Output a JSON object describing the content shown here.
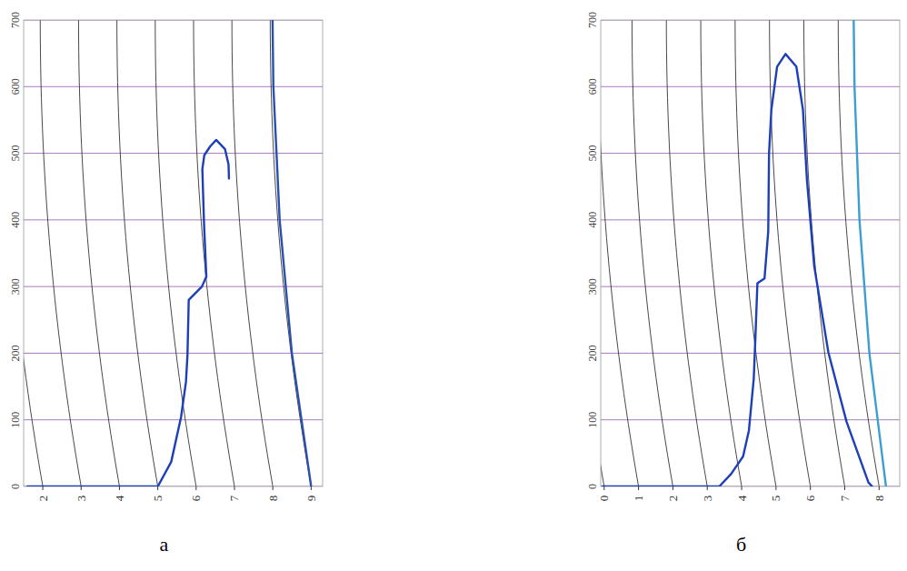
{
  "chart_data": [
    {
      "type": "line",
      "title": "а",
      "xlim": [
        1.5,
        9.3
      ],
      "xticks": [
        2,
        3,
        4,
        5,
        6,
        7,
        8,
        9
      ],
      "ylim": [
        0,
        700
      ],
      "yticks": [
        0,
        100,
        200,
        300,
        400,
        500,
        600,
        700
      ],
      "grid": true,
      "series": [
        {
          "color": "#1d3fb8",
          "x": [
            1.6,
            5.0,
            5.46,
            5.9,
            6.16,
            6.29,
            6.49,
            6.87,
            7.01,
            7.07,
            7.12,
            7.19,
            7.35,
            7.52,
            7.74,
            7.81,
            7.8
          ],
          "values": [
            0,
            0,
            37,
            104,
            157,
            197,
            280,
            300,
            315,
            395,
            476,
            497,
            510,
            520,
            506,
            483,
            462
          ]
        },
        {
          "color": "#2b4fb0",
          "x": [
            9.0,
            9.02,
            9.05,
            9.06,
            9.06
          ],
          "values": [
            0,
            200,
            400,
            600,
            700
          ]
        }
      ]
    },
    {
      "type": "line",
      "title": "б",
      "xlim": [
        -0.1,
        8.6
      ],
      "xticks": [
        0,
        1,
        2,
        3,
        4,
        5,
        6,
        7,
        8
      ],
      "ylim": [
        0,
        700
      ],
      "yticks": [
        0,
        100,
        200,
        300,
        400,
        500,
        600,
        700
      ],
      "grid": true,
      "series": [
        {
          "color": "#1d3fb8",
          "x": [
            -0.05,
            3.35,
            3.76,
            4.19,
            4.48,
            4.84,
            5.05,
            5.27,
            5.49,
            5.72,
            5.89,
            6.01,
            6.21,
            6.46,
            6.77,
            6.93,
            6.95,
            6.97,
            7.11,
            7.36,
            7.71,
            7.8
          ],
          "values": [
            0,
            0,
            19,
            45,
            84,
            162,
            227,
            305,
            312,
            383,
            500,
            565,
            630,
            649,
            630,
            565,
            461,
            331,
            201,
            97,
            6,
            0
          ]
        },
        {
          "color": "#3b9fd1",
          "x": [
            8.2,
            8.3,
            8.4,
            8.45,
            8.45
          ],
          "values": [
            0,
            200,
            400,
            600,
            700
          ]
        }
      ]
    }
  ]
}
